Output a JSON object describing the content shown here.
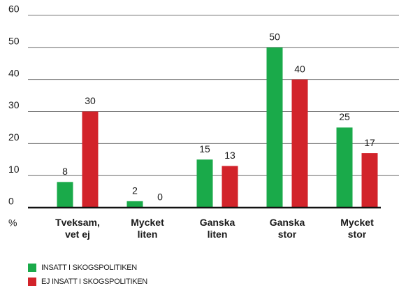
{
  "chart_data": {
    "type": "bar",
    "categories": [
      "Tveksam,\nvet ej",
      "Mycket\nliten",
      "Ganska\nliten",
      "Ganska\nstor",
      "Mycket\nstor"
    ],
    "series": [
      {
        "name": "INSATT I SKOGSPOLITIKEN",
        "color": "#1aaa4a",
        "values": [
          8,
          2,
          15,
          50,
          25
        ]
      },
      {
        "name": "EJ INSATT I SKOGSPOLITIKEN",
        "color": "#d2232a",
        "values": [
          30,
          0,
          13,
          40,
          17
        ]
      }
    ],
    "y_unit_label": "%",
    "ylim": [
      0,
      60
    ],
    "yticks": [
      0,
      10,
      20,
      30,
      40,
      50,
      60
    ],
    "grid": true,
    "legend": "bottom-left"
  }
}
